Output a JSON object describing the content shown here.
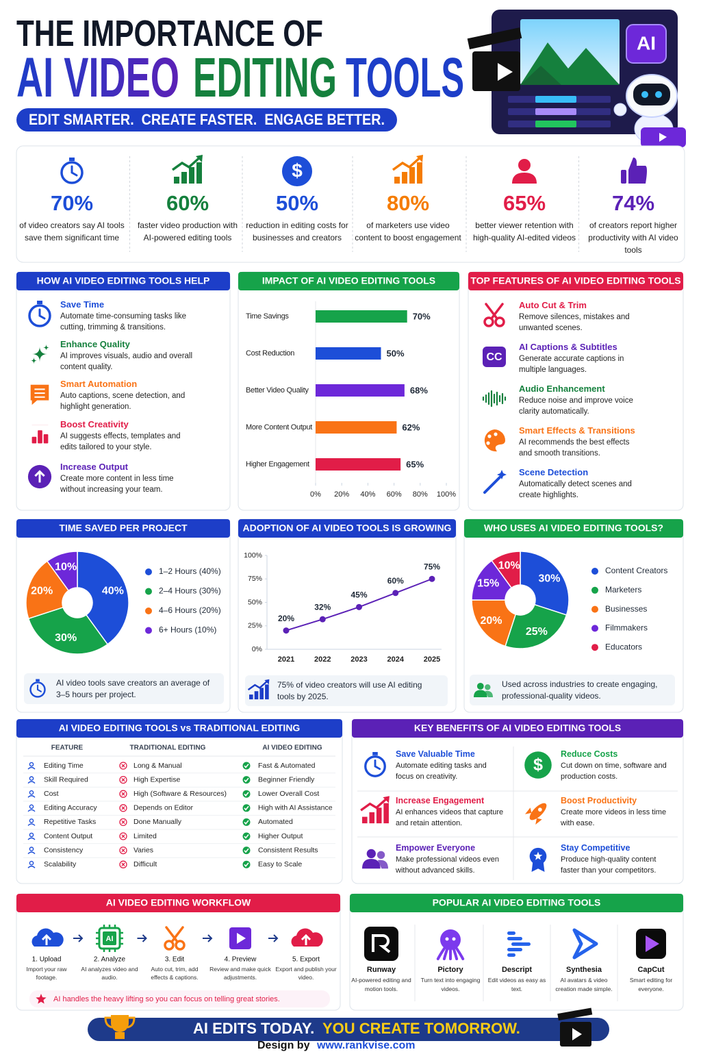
{
  "header": {
    "title": "THE IMPORTANCE OF",
    "title_words": [
      "AI VIDEO",
      "EDITING",
      "TOOLS"
    ],
    "tagline": "EDIT SMARTER.  CREATE FASTER.  ENGAGE BETTER.",
    "badge": "AI"
  },
  "stats": [
    {
      "value": "70%",
      "text": "of video creators say AI tools save them significant time"
    },
    {
      "value": "60%",
      "text": "faster video production with AI-powered editing tools"
    },
    {
      "value": "50%",
      "text": "reduction in editing costs for businesses and creators",
      "icon": "$"
    },
    {
      "value": "80%",
      "text": "of marketers use video content to boost engagement"
    },
    {
      "value": "65%",
      "text": "better viewer retention with high-quality AI-edited videos"
    },
    {
      "value": "74%",
      "text": "of creators report higher productivity with AI video tools"
    }
  ],
  "help": {
    "title": "HOW AI VIDEO EDITING TOOLS HELP",
    "items": [
      {
        "title": "Save Time",
        "text": "Automate time-consuming tasks like cutting, trimming & transitions."
      },
      {
        "title": "Enhance Quality",
        "text": "AI improves visuals, audio and overall content quality."
      },
      {
        "title": "Smart Automation",
        "text": "Auto captions, scene detection, and highlight generation."
      },
      {
        "title": "Boost Creativity",
        "text": "AI suggests effects, templates and edits tailored to your style."
      },
      {
        "title": "Increase Output",
        "text": "Create more content in less time without increasing your team."
      }
    ]
  },
  "features": {
    "title": "TOP FEATURES OF AI VIDEO EDITING TOOLS",
    "items": [
      {
        "title": "Auto Cut & Trim",
        "text": "Remove silences, mistakes and unwanted scenes."
      },
      {
        "title": "AI Captions & Subtitles",
        "text": "Generate accurate captions in multiple languages.",
        "icon": "CC"
      },
      {
        "title": "Audio Enhancement",
        "text": "Reduce noise and improve voice clarity automatically."
      },
      {
        "title": "Smart Effects & Transitions",
        "text": "AI recommends the best effects and smooth transitions."
      },
      {
        "title": "Scene Detection",
        "text": "Automatically detect scenes and create highlights."
      }
    ]
  },
  "chart_data": [
    {
      "type": "bar",
      "title": "IMPACT OF AI VIDEO EDITING TOOLS",
      "categories": [
        "Time Savings",
        "Cost Reduction",
        "Better Video Quality",
        "More Content Output",
        "Higher Engagement"
      ],
      "values": [
        70,
        50,
        68,
        62,
        65
      ],
      "value_labels": [
        "70%",
        "50%",
        "68%",
        "62%",
        "65%"
      ],
      "colors": [
        "#16a34a",
        "#1d4ed8",
        "#6d28d9",
        "#f97316",
        "#e11d48"
      ],
      "xlim": [
        0,
        100
      ],
      "xticks": [
        {
          "value": 0,
          "label": "0%"
        },
        {
          "value": 20,
          "label": "20%"
        },
        {
          "value": 40,
          "label": "40%"
        },
        {
          "value": 60,
          "label": "60%"
        },
        {
          "value": 80,
          "label": "80%"
        },
        {
          "value": 100,
          "label": "100%"
        }
      ]
    },
    {
      "type": "pie",
      "title": "TIME SAVED PER PROJECT",
      "categories": [
        "1–2 Hours (40%)",
        "2–4 Hours (30%)",
        "4–6 Hours (20%)",
        "6+ Hours (10%)"
      ],
      "values": [
        40,
        30,
        20,
        10
      ],
      "value_labels": [
        "40%",
        "30%",
        "20%",
        "10%"
      ],
      "colors": [
        "#1d4ed8",
        "#16a34a",
        "#f97316",
        "#6d28d9"
      ],
      "note": "AI video tools save creators an average of 3–5 hours per project."
    },
    {
      "type": "line",
      "title": "ADOPTION OF AI VIDEO TOOLS IS GROWING",
      "categories": [
        "2021",
        "2022",
        "2023",
        "2024",
        "2025"
      ],
      "values": [
        20,
        32,
        45,
        60,
        75
      ],
      "value_labels": [
        "20%",
        "32%",
        "45%",
        "60%",
        "75%"
      ],
      "color": "#5b21b6",
      "grid": false,
      "ylim": [
        0,
        100
      ],
      "yticks": [
        {
          "value": 0,
          "label": "0%"
        },
        {
          "value": 25,
          "label": "25%"
        },
        {
          "value": 50,
          "label": "50%"
        },
        {
          "value": 75,
          "label": "75%"
        },
        {
          "value": 100,
          "label": "100%"
        }
      ],
      "note": "75% of video creators will use AI editing tools by 2025."
    },
    {
      "type": "pie",
      "title": "WHO USES AI VIDEO EDITING TOOLS?",
      "categories": [
        "Content Creators",
        "Marketers",
        "Businesses",
        "Filmmakers",
        "Educators"
      ],
      "values": [
        30,
        25,
        20,
        15,
        10
      ],
      "value_labels": [
        "30%",
        "25%",
        "20%",
        "15%",
        "10%"
      ],
      "colors": [
        "#1d4ed8",
        "#16a34a",
        "#f97316",
        "#6d28d9",
        "#e11d48"
      ],
      "note": "Used across industries to create engaging, professional-quality videos."
    }
  ],
  "comparison": {
    "title": "AI VIDEO EDITING TOOLS vs TRADITIONAL EDITING",
    "headers": [
      "FEATURE",
      "TRADITIONAL EDITING",
      "AI VIDEO EDITING"
    ],
    "rows": [
      [
        "Editing Time",
        "Long & Manual",
        "Fast & Automated"
      ],
      [
        "Skill Required",
        "High Expertise",
        "Beginner Friendly"
      ],
      [
        "Cost",
        "High (Software & Resources)",
        "Lower Overall Cost"
      ],
      [
        "Editing Accuracy",
        "Depends on Editor",
        "High with AI Assistance"
      ],
      [
        "Repetitive Tasks",
        "Done Manually",
        "Automated"
      ],
      [
        "Content Output",
        "Limited",
        "Higher Output"
      ],
      [
        "Consistency",
        "Varies",
        "Consistent Results"
      ],
      [
        "Scalability",
        "Difficult",
        "Easy to Scale"
      ]
    ]
  },
  "benefits": {
    "title": "KEY BENEFITS OF AI VIDEO EDITING TOOLS",
    "items": [
      {
        "title": "Save Valuable Time",
        "text": "Automate editing tasks and focus on creativity."
      },
      {
        "title": "Reduce Costs",
        "text": "Cut down on time, software and production costs.",
        "icon": "$"
      },
      {
        "title": "Increase Engagement",
        "text": "AI enhances videos that capture and retain attention."
      },
      {
        "title": "Boost Productivity",
        "text": "Create more videos in less time with ease."
      },
      {
        "title": "Empower Everyone",
        "text": "Make professional videos even without advanced skills."
      },
      {
        "title": "Stay Competitive",
        "text": "Produce high-quality content faster than your competitors."
      }
    ]
  },
  "workflow": {
    "title": "AI VIDEO EDITING WORKFLOW",
    "steps": [
      {
        "title": "1. Upload",
        "text": "Import your raw footage."
      },
      {
        "title": "2. Analyze",
        "text": "AI analyzes video and audio.",
        "icon": "AI"
      },
      {
        "title": "3. Edit",
        "text": "Auto cut, trim, add effects & captions."
      },
      {
        "title": "4. Preview",
        "text": "Review and make quick adjustments."
      },
      {
        "title": "5. Export",
        "text": "Export and publish your video."
      }
    ],
    "note": "AI handles the heavy lifting so you can focus on telling great stories."
  },
  "tools": {
    "title": "POPULAR AI VIDEO EDITING TOOLS",
    "items": [
      {
        "name": "Runway",
        "text": "AI-powered editing and motion tools."
      },
      {
        "name": "Pictory",
        "text": "Turn text into engaging videos."
      },
      {
        "name": "Descript",
        "text": "Edit videos as easy as text."
      },
      {
        "name": "Synthesia",
        "text": "AI avatars & video creation made simple."
      },
      {
        "name": "CapCut",
        "text": "Smart editing for everyone."
      }
    ]
  },
  "footer": {
    "banner": [
      "AI EDITS TODAY.",
      "YOU CREATE TOMORROW."
    ],
    "credit": "Design by",
    "url": "www.rankvise.com"
  }
}
